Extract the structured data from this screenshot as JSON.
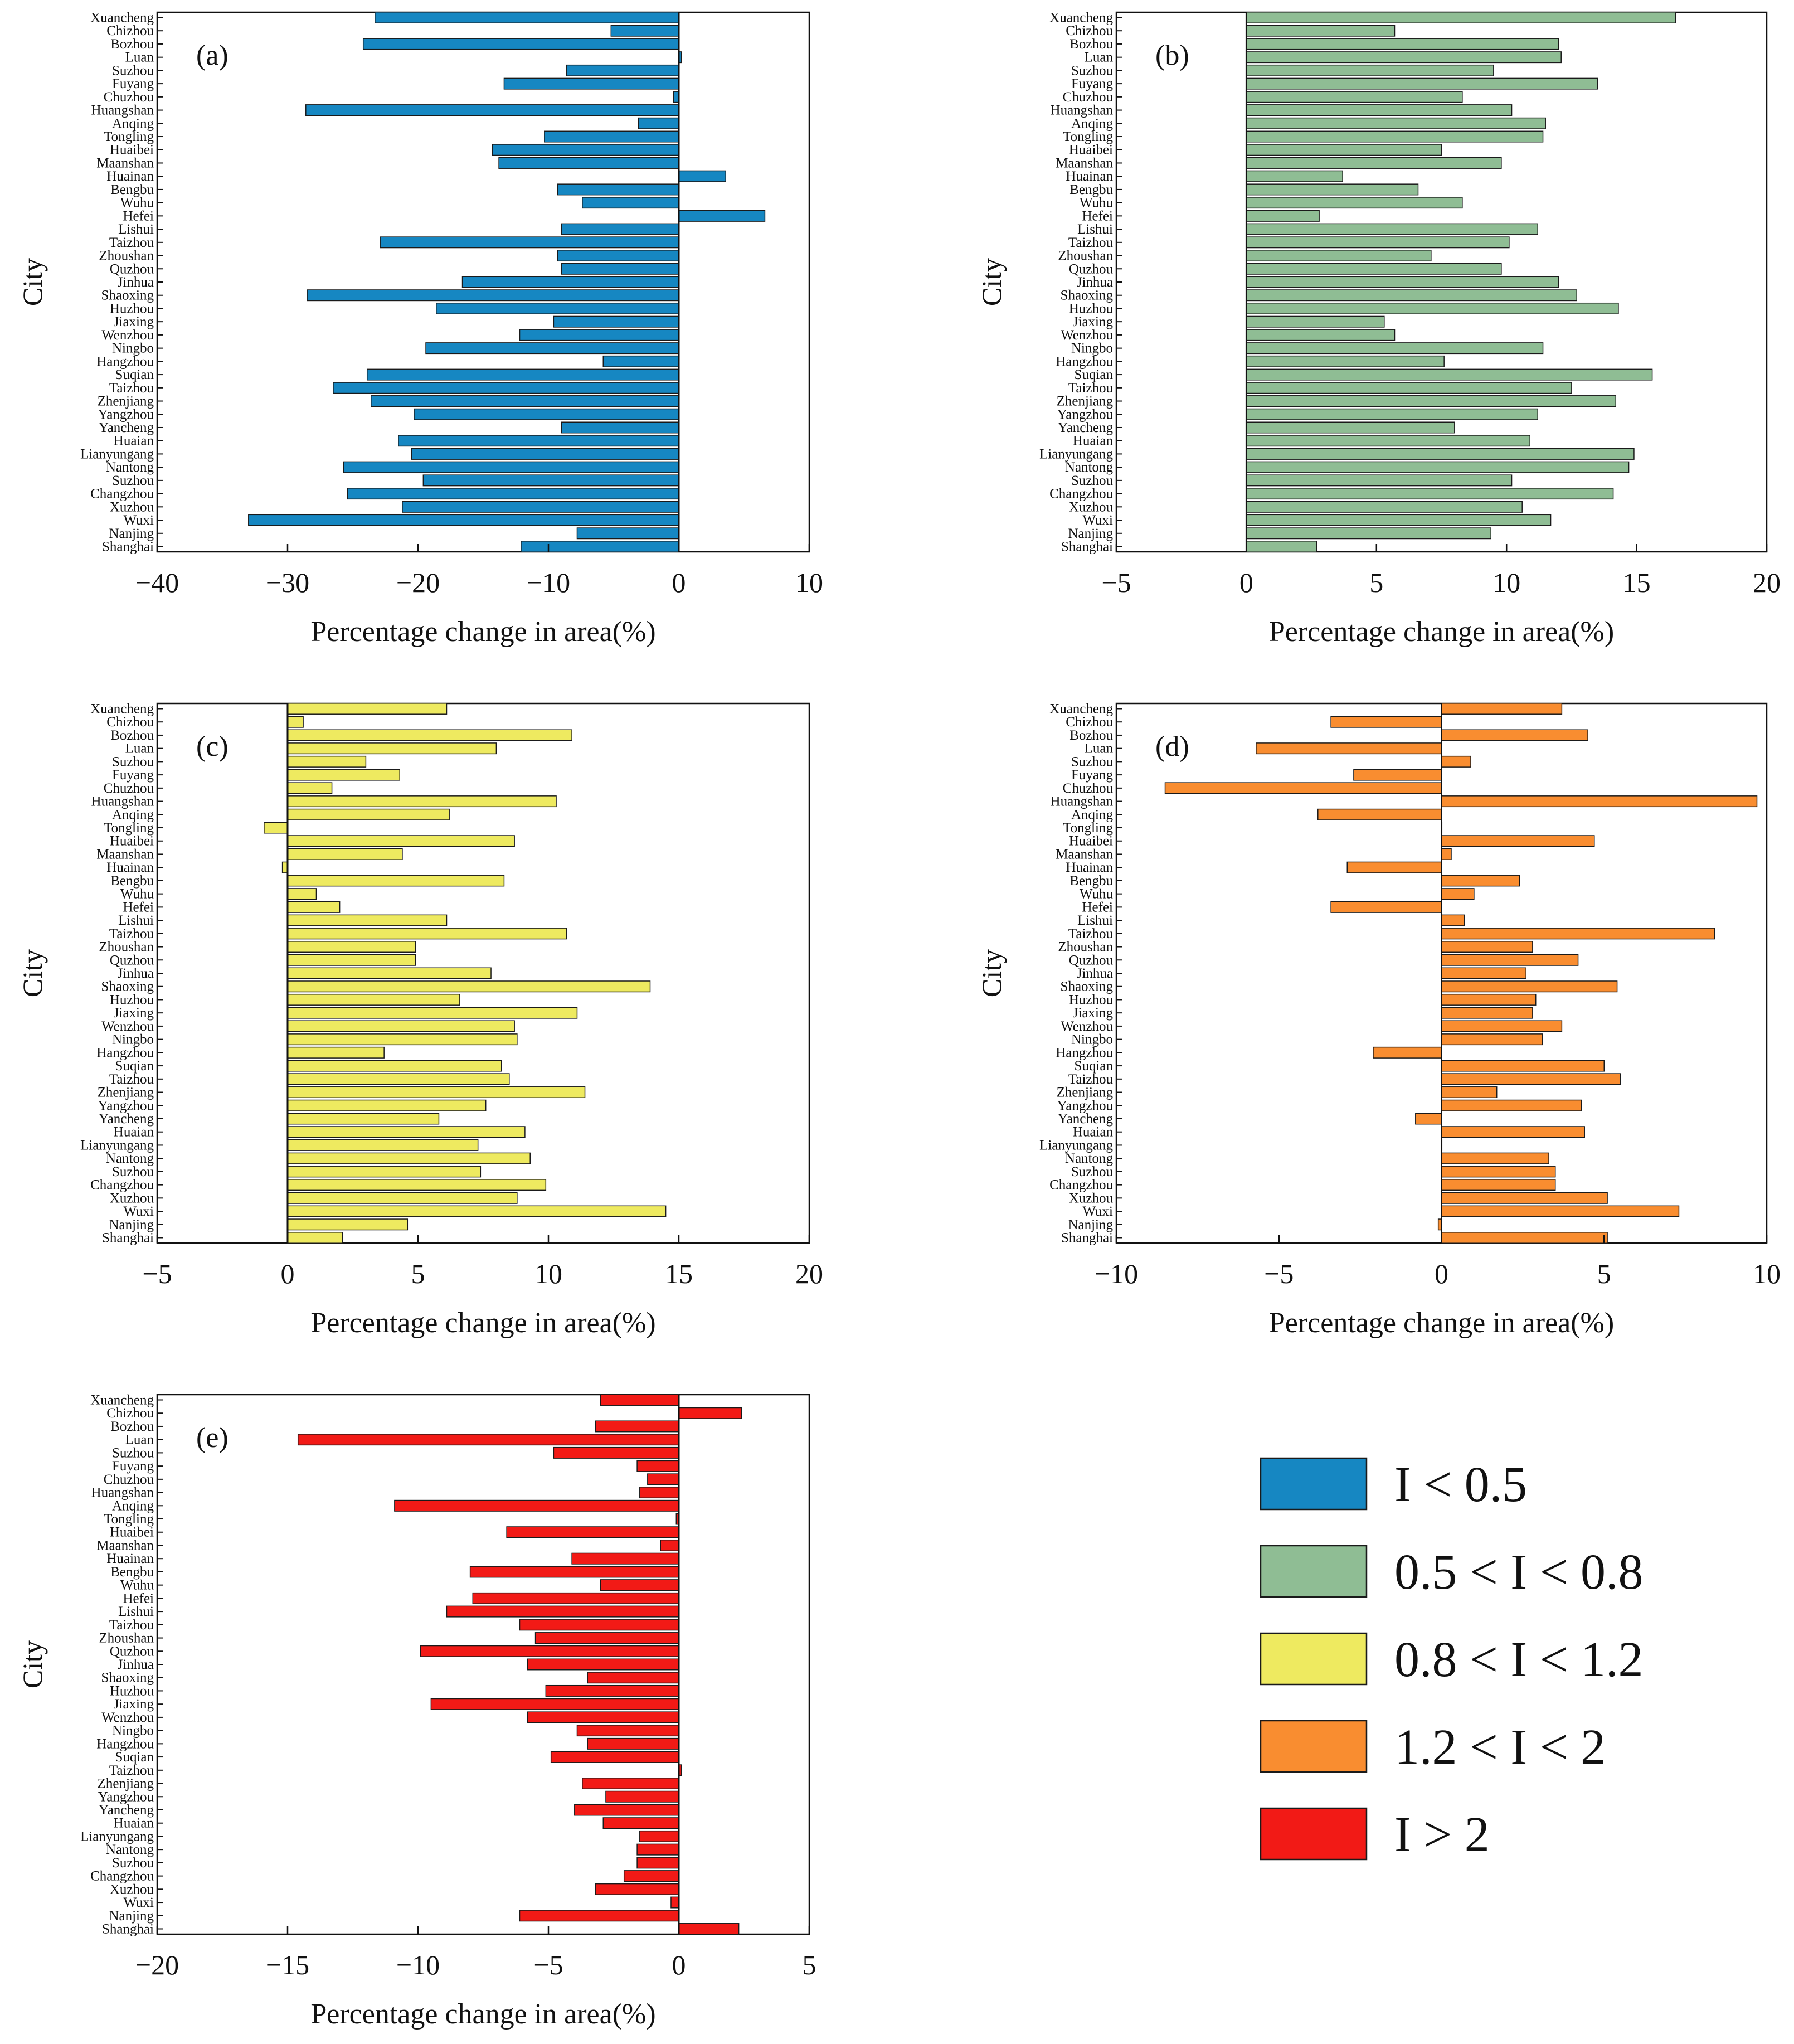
{
  "chart_data": [
    {
      "panel": "(a)",
      "type": "bar",
      "orientation": "horizontal",
      "xlabel": "Percentage change in area(%)",
      "ylabel": "City",
      "xlim": [
        -40,
        10
      ],
      "xticks": [
        -40,
        -30,
        -20,
        -10,
        0,
        10
      ],
      "color": "#1687c2",
      "categories": [
        "Xuancheng",
        "Chizhou",
        "Bozhou",
        "Luan",
        "Suzhou",
        "Fuyang",
        "Chuzhou",
        "Huangshan",
        "Anqing",
        "Tongling",
        "Huaibei",
        "Maanshan",
        "Huainan",
        "Bengbu",
        "Wuhu",
        "Hefei",
        "Lishui",
        "Taizhou",
        "Zhoushan",
        "Quzhou",
        "Jinhua",
        "Shaoxing",
        "Huzhou",
        "Jiaxing",
        "Wenzhou",
        "Ningbo",
        "Hangzhou",
        "Suqian",
        "Taizhou",
        "Zhenjiang",
        "Yangzhou",
        "Yancheng",
        "Huaian",
        "Lianyungang",
        "Nantong",
        "Suzhou",
        "Changzhou",
        "Xuzhou",
        "Wuxi",
        "Nanjing",
        "Shanghai"
      ],
      "values": [
        -23.3,
        -5.2,
        -24.2,
        0.2,
        -8.6,
        -13.4,
        -0.4,
        -28.6,
        -3.1,
        -10.3,
        -14.3,
        -13.8,
        3.6,
        -9.3,
        -7.4,
        6.6,
        -9.0,
        -22.9,
        -9.3,
        -9.0,
        -16.6,
        -28.5,
        -18.6,
        -9.6,
        -12.2,
        -19.4,
        -5.8,
        -23.9,
        -26.5,
        -23.6,
        -20.3,
        -9.0,
        -21.5,
        -20.5,
        -25.7,
        -19.6,
        -25.4,
        -21.2,
        -33.0,
        -7.8,
        -12.1
      ]
    },
    {
      "panel": "(b)",
      "type": "bar",
      "orientation": "horizontal",
      "xlabel": "Percentage change in area(%)",
      "ylabel": "City",
      "xlim": [
        -5,
        20
      ],
      "xticks": [
        -5,
        0,
        5,
        10,
        15,
        20
      ],
      "color": "#8fbd94",
      "categories": [
        "Xuancheng",
        "Chizhou",
        "Bozhou",
        "Luan",
        "Suzhou",
        "Fuyang",
        "Chuzhou",
        "Huangshan",
        "Anqing",
        "Tongling",
        "Huaibei",
        "Maanshan",
        "Huainan",
        "Bengbu",
        "Wuhu",
        "Hefei",
        "Lishui",
        "Taizhou",
        "Zhoushan",
        "Quzhou",
        "Jinhua",
        "Shaoxing",
        "Huzhou",
        "Jiaxing",
        "Wenzhou",
        "Ningbo",
        "Hangzhou",
        "Suqian",
        "Taizhou",
        "Zhenjiang",
        "Yangzhou",
        "Yancheng",
        "Huaian",
        "Lianyungang",
        "Nantong",
        "Suzhou",
        "Changzhou",
        "Xuzhou",
        "Wuxi",
        "Nanjing",
        "Shanghai"
      ],
      "values": [
        16.5,
        5.7,
        12.0,
        12.1,
        9.5,
        13.5,
        8.3,
        10.2,
        11.5,
        11.4,
        7.5,
        9.8,
        3.7,
        6.6,
        8.3,
        2.8,
        11.2,
        10.1,
        7.1,
        9.8,
        12.0,
        12.7,
        14.3,
        5.3,
        5.7,
        11.4,
        7.6,
        15.6,
        12.5,
        14.2,
        11.2,
        8.0,
        10.9,
        14.9,
        14.7,
        10.2,
        14.1,
        10.6,
        11.7,
        9.4,
        2.7
      ]
    },
    {
      "panel": "(c)",
      "type": "bar",
      "orientation": "horizontal",
      "xlabel": "Percentage change in area(%)",
      "ylabel": "City",
      "xlim": [
        -5,
        20
      ],
      "xticks": [
        -5,
        0,
        5,
        10,
        15,
        20
      ],
      "color": "#eeea60",
      "categories": [
        "Xuancheng",
        "Chizhou",
        "Bozhou",
        "Luan",
        "Suzhou",
        "Fuyang",
        "Chuzhou",
        "Huangshan",
        "Anqing",
        "Tongling",
        "Huaibei",
        "Maanshan",
        "Huainan",
        "Bengbu",
        "Wuhu",
        "Hefei",
        "Lishui",
        "Taizhou",
        "Zhoushan",
        "Quzhou",
        "Jinhua",
        "Shaoxing",
        "Huzhou",
        "Jiaxing",
        "Wenzhou",
        "Ningbo",
        "Hangzhou",
        "Suqian",
        "Taizhou",
        "Zhenjiang",
        "Yangzhou",
        "Yancheng",
        "Huaian",
        "Lianyungang",
        "Nantong",
        "Suzhou",
        "Changzhou",
        "Xuzhou",
        "Wuxi",
        "Nanjing",
        "Shanghai"
      ],
      "values": [
        6.1,
        0.6,
        10.9,
        8.0,
        3.0,
        4.3,
        1.7,
        10.3,
        6.2,
        -0.9,
        8.7,
        4.4,
        -0.2,
        8.3,
        1.1,
        2.0,
        6.1,
        10.7,
        4.9,
        4.9,
        7.8,
        13.9,
        6.6,
        11.1,
        8.7,
        8.8,
        3.7,
        8.2,
        8.5,
        11.4,
        7.6,
        5.8,
        9.1,
        7.3,
        9.3,
        7.4,
        9.9,
        8.8,
        14.5,
        4.6,
        2.1
      ]
    },
    {
      "panel": "(d)",
      "type": "bar",
      "orientation": "horizontal",
      "xlabel": "Percentage change in area(%)",
      "ylabel": "City",
      "xlim": [
        -10,
        10
      ],
      "xticks": [
        -10,
        -5,
        0,
        5,
        10
      ],
      "color": "#f98d30",
      "categories": [
        "Xuancheng",
        "Chizhou",
        "Bozhou",
        "Luan",
        "Suzhou",
        "Fuyang",
        "Chuzhou",
        "Huangshan",
        "Anqing",
        "Tongling",
        "Huaibei",
        "Maanshan",
        "Huainan",
        "Bengbu",
        "Wuhu",
        "Hefei",
        "Lishui",
        "Taizhou",
        "Zhoushan",
        "Quzhou",
        "Jinhua",
        "Shaoxing",
        "Huzhou",
        "Jiaxing",
        "Wenzhou",
        "Ningbo",
        "Hangzhou",
        "Suqian",
        "Taizhou",
        "Zhenjiang",
        "Yangzhou",
        "Yancheng",
        "Huaian",
        "Lianyungang",
        "Nantong",
        "Suzhou",
        "Changzhou",
        "Xuzhou",
        "Wuxi",
        "Nanjing",
        "Shanghai"
      ],
      "values": [
        3.7,
        -3.4,
        4.5,
        -5.7,
        0.9,
        -2.7,
        -8.5,
        9.7,
        -3.8,
        0.0,
        4.7,
        0.3,
        -2.9,
        2.4,
        1.0,
        -3.4,
        0.7,
        8.4,
        2.8,
        4.2,
        2.6,
        5.4,
        2.9,
        2.8,
        3.7,
        3.1,
        -2.1,
        5.0,
        5.5,
        1.7,
        4.3,
        -0.8,
        4.4,
        0.0,
        3.3,
        3.5,
        3.5,
        5.1,
        7.3,
        -0.1,
        5.1
      ]
    },
    {
      "panel": "(e)",
      "type": "bar",
      "orientation": "horizontal",
      "xlabel": "Percentage change in area(%)",
      "ylabel": "City",
      "xlim": [
        -20,
        5
      ],
      "xticks": [
        -20,
        -15,
        -10,
        -5,
        0,
        5
      ],
      "color": "#f21a16",
      "categories": [
        "Xuancheng",
        "Chizhou",
        "Bozhou",
        "Luan",
        "Suzhou",
        "Fuyang",
        "Chuzhou",
        "Huangshan",
        "Anqing",
        "Tongling",
        "Huaibei",
        "Maanshan",
        "Huainan",
        "Bengbu",
        "Wuhu",
        "Hefei",
        "Lishui",
        "Taizhou",
        "Zhoushan",
        "Quzhou",
        "Jinhua",
        "Shaoxing",
        "Huzhou",
        "Jiaxing",
        "Wenzhou",
        "Ningbo",
        "Hangzhou",
        "Suqian",
        "Taizhou",
        "Zhenjiang",
        "Yangzhou",
        "Yancheng",
        "Huaian",
        "Lianyungang",
        "Nantong",
        "Suzhou",
        "Changzhou",
        "Xuzhou",
        "Wuxi",
        "Nanjing",
        "Shanghai"
      ],
      "values": [
        -3.0,
        2.4,
        -3.2,
        -14.6,
        -4.8,
        -1.6,
        -1.2,
        -1.5,
        -10.9,
        -0.1,
        -6.6,
        -0.7,
        -4.1,
        -8.0,
        -3.0,
        -7.9,
        -8.9,
        -6.1,
        -5.5,
        -9.9,
        -5.8,
        -3.5,
        -5.1,
        -9.5,
        -5.8,
        -3.9,
        -3.5,
        -4.9,
        0.1,
        -3.7,
        -2.8,
        -4.0,
        -2.9,
        -1.5,
        -1.6,
        -1.6,
        -2.1,
        -3.2,
        -0.3,
        -6.1,
        2.3
      ]
    }
  ],
  "legend": [
    {
      "label": "I < 0.5",
      "color": "#1687c2"
    },
    {
      "label": "0.5 < I < 0.8",
      "color": "#8fbd94"
    },
    {
      "label": "0.8 < I < 1.2",
      "color": "#eeea60"
    },
    {
      "label": "1.2 < I < 2",
      "color": "#f98d30"
    },
    {
      "label": "I > 2",
      "color": "#f21a16"
    }
  ]
}
